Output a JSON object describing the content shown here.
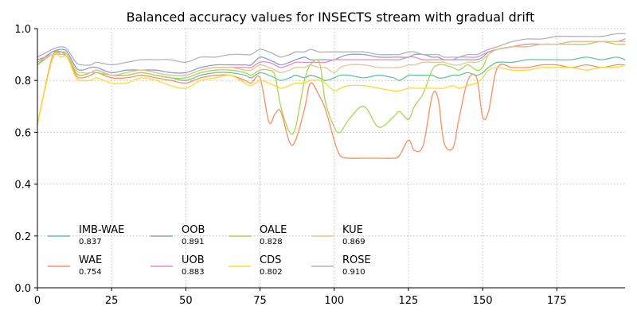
{
  "chart_data": {
    "type": "line",
    "title": "Balanced accuracy values for INSECTS stream with gradual drift",
    "xlabel": "",
    "ylabel": "",
    "xlim": [
      0,
      198
    ],
    "ylim": [
      0,
      1.0
    ],
    "xticks": [
      0,
      25,
      50,
      75,
      100,
      125,
      150,
      175
    ],
    "yticks": [
      0.0,
      0.2,
      0.4,
      0.6,
      0.8,
      1.0
    ],
    "tick_labels_x": [
      "0",
      "25",
      "50",
      "75",
      "100",
      "125",
      "150",
      "175"
    ],
    "tick_labels_y": [
      "0.0",
      "0.2",
      "0.4",
      "0.6",
      "0.8",
      "1.0"
    ],
    "grid": true,
    "legend_placement": "lower-left",
    "x": [
      0,
      5,
      8,
      10,
      13,
      15,
      18,
      20,
      25,
      30,
      35,
      40,
      45,
      50,
      55,
      60,
      65,
      70,
      72,
      75,
      78,
      80,
      82,
      85,
      87,
      90,
      92,
      95,
      97,
      100,
      102,
      105,
      110,
      115,
      120,
      122,
      125,
      127,
      130,
      133,
      135,
      137,
      140,
      142,
      145,
      148,
      150,
      152,
      155,
      160,
      165,
      170,
      175,
      180,
      185,
      190,
      195,
      198
    ],
    "series": [
      {
        "name": "IMB-WAE",
        "value_label": "0.837",
        "color": "#66c2a5",
        "values": [
          0.86,
          0.91,
          0.91,
          0.89,
          0.83,
          0.82,
          0.83,
          0.84,
          0.82,
          0.82,
          0.83,
          0.82,
          0.81,
          0.8,
          0.82,
          0.83,
          0.83,
          0.82,
          0.81,
          0.83,
          0.82,
          0.81,
          0.8,
          0.81,
          0.82,
          0.81,
          0.82,
          0.81,
          0.8,
          0.81,
          0.82,
          0.82,
          0.81,
          0.82,
          0.81,
          0.8,
          0.82,
          0.82,
          0.82,
          0.82,
          0.81,
          0.81,
          0.82,
          0.82,
          0.83,
          0.82,
          0.83,
          0.85,
          0.87,
          0.87,
          0.88,
          0.88,
          0.88,
          0.88,
          0.89,
          0.88,
          0.89,
          0.88
        ]
      },
      {
        "name": "WAE",
        "value_label": "0.754",
        "color": "#fc8d62",
        "values": [
          0.63,
          0.89,
          0.9,
          0.89,
          0.82,
          0.81,
          0.82,
          0.83,
          0.81,
          0.81,
          0.82,
          0.81,
          0.8,
          0.79,
          0.81,
          0.82,
          0.82,
          0.8,
          0.79,
          0.81,
          0.64,
          0.67,
          0.68,
          0.56,
          0.57,
          0.69,
          0.79,
          0.74,
          0.69,
          0.57,
          0.51,
          0.5,
          0.5,
          0.5,
          0.5,
          0.51,
          0.57,
          0.53,
          0.55,
          0.74,
          0.73,
          0.56,
          0.54,
          0.65,
          0.8,
          0.81,
          0.66,
          0.68,
          0.85,
          0.85,
          0.85,
          0.86,
          0.86,
          0.85,
          0.86,
          0.85,
          0.86,
          0.86
        ]
      },
      {
        "name": "OOB",
        "value_label": "0.891",
        "color": "#8da0cb",
        "values": [
          0.87,
          0.91,
          0.92,
          0.91,
          0.85,
          0.84,
          0.85,
          0.85,
          0.83,
          0.84,
          0.84,
          0.84,
          0.83,
          0.83,
          0.85,
          0.86,
          0.86,
          0.86,
          0.86,
          0.89,
          0.88,
          0.87,
          0.86,
          0.87,
          0.88,
          0.89,
          0.88,
          0.88,
          0.88,
          0.88,
          0.89,
          0.9,
          0.9,
          0.89,
          0.89,
          0.89,
          0.89,
          0.9,
          0.9,
          0.89,
          0.89,
          0.88,
          0.88,
          0.88,
          0.88,
          0.88,
          0.89,
          0.91,
          0.92,
          0.93,
          0.94,
          0.94,
          0.94,
          0.95,
          0.95,
          0.95,
          0.95,
          0.95
        ]
      },
      {
        "name": "UOB",
        "value_label": "0.883",
        "color": "#e78ac3",
        "values": [
          0.88,
          0.9,
          0.91,
          0.9,
          0.83,
          0.82,
          0.83,
          0.84,
          0.82,
          0.83,
          0.84,
          0.83,
          0.82,
          0.82,
          0.84,
          0.85,
          0.85,
          0.85,
          0.85,
          0.87,
          0.87,
          0.86,
          0.85,
          0.86,
          0.87,
          0.87,
          0.87,
          0.87,
          0.87,
          0.88,
          0.88,
          0.88,
          0.88,
          0.88,
          0.88,
          0.88,
          0.89,
          0.89,
          0.88,
          0.88,
          0.88,
          0.88,
          0.88,
          0.89,
          0.89,
          0.89,
          0.9,
          0.91,
          0.92,
          0.93,
          0.94,
          0.94,
          0.94,
          0.95,
          0.95,
          0.95,
          0.95,
          0.96
        ]
      },
      {
        "name": "OALE",
        "value_label": "0.828",
        "color": "#a6d854",
        "values": [
          0.86,
          0.9,
          0.91,
          0.9,
          0.83,
          0.82,
          0.83,
          0.83,
          0.82,
          0.82,
          0.83,
          0.82,
          0.81,
          0.81,
          0.83,
          0.84,
          0.84,
          0.83,
          0.82,
          0.84,
          0.84,
          0.82,
          0.7,
          0.6,
          0.62,
          0.8,
          0.86,
          0.87,
          0.72,
          0.62,
          0.6,
          0.65,
          0.7,
          0.62,
          0.66,
          0.68,
          0.65,
          0.7,
          0.75,
          0.84,
          0.86,
          0.86,
          0.85,
          0.84,
          0.86,
          0.84,
          0.85,
          0.9,
          0.92,
          0.93,
          0.93,
          0.94,
          0.94,
          0.94,
          0.94,
          0.95,
          0.94,
          0.94
        ]
      },
      {
        "name": "CDS",
        "value_label": "0.802",
        "color": "#ffd92f",
        "values": [
          0.63,
          0.88,
          0.89,
          0.89,
          0.81,
          0.8,
          0.8,
          0.81,
          0.79,
          0.79,
          0.81,
          0.8,
          0.78,
          0.77,
          0.8,
          0.81,
          0.82,
          0.79,
          0.78,
          0.8,
          0.79,
          0.78,
          0.77,
          0.78,
          0.79,
          0.79,
          0.8,
          0.8,
          0.79,
          0.76,
          0.77,
          0.78,
          0.78,
          0.77,
          0.76,
          0.76,
          0.77,
          0.77,
          0.77,
          0.77,
          0.77,
          0.77,
          0.78,
          0.77,
          0.78,
          0.79,
          0.81,
          0.84,
          0.85,
          0.84,
          0.84,
          0.85,
          0.85,
          0.85,
          0.84,
          0.85,
          0.85,
          0.86
        ]
      },
      {
        "name": "KUE",
        "value_label": "0.869",
        "color": "#e5c494",
        "values": [
          0.87,
          0.9,
          0.9,
          0.9,
          0.84,
          0.83,
          0.83,
          0.84,
          0.82,
          0.83,
          0.84,
          0.83,
          0.82,
          0.82,
          0.84,
          0.85,
          0.85,
          0.84,
          0.84,
          0.86,
          0.85,
          0.84,
          0.83,
          0.84,
          0.85,
          0.85,
          0.86,
          0.85,
          0.85,
          0.83,
          0.85,
          0.86,
          0.86,
          0.85,
          0.85,
          0.85,
          0.86,
          0.86,
          0.87,
          0.87,
          0.87,
          0.87,
          0.86,
          0.86,
          0.87,
          0.87,
          0.88,
          0.9,
          0.92,
          0.93,
          0.93,
          0.94,
          0.94,
          0.95,
          0.95,
          0.95,
          0.95,
          0.95
        ]
      },
      {
        "name": "ROSE",
        "value_label": "0.910",
        "color": "#b3b3b3",
        "values": [
          0.89,
          0.92,
          0.93,
          0.92,
          0.87,
          0.86,
          0.86,
          0.87,
          0.86,
          0.87,
          0.88,
          0.88,
          0.88,
          0.87,
          0.89,
          0.89,
          0.9,
          0.9,
          0.9,
          0.92,
          0.91,
          0.9,
          0.89,
          0.9,
          0.91,
          0.91,
          0.92,
          0.91,
          0.91,
          0.91,
          0.91,
          0.91,
          0.91,
          0.9,
          0.9,
          0.9,
          0.91,
          0.91,
          0.9,
          0.9,
          0.9,
          0.89,
          0.89,
          0.89,
          0.9,
          0.9,
          0.91,
          0.92,
          0.93,
          0.95,
          0.96,
          0.96,
          0.97,
          0.97,
          0.97,
          0.97,
          0.98,
          0.98
        ]
      }
    ]
  }
}
